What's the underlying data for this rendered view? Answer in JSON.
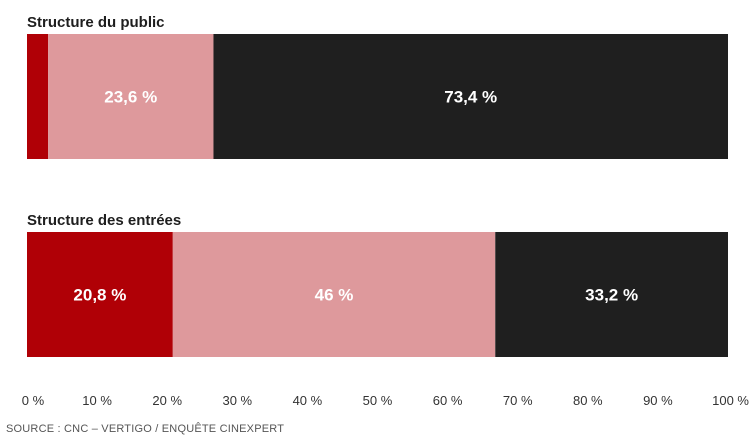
{
  "chart_data": {
    "type": "bar",
    "orientation": "horizontal",
    "stacked": true,
    "normalized_percent": true,
    "xlim": [
      0,
      100
    ],
    "x_ticks": [
      "0 %",
      "10 %",
      "20 %",
      "30 %",
      "40 %",
      "50 %",
      "60 %",
      "70 %",
      "80 %",
      "90 %",
      "100 %"
    ],
    "grid": false,
    "legend": "none",
    "segment_colors": [
      "#b00006",
      "#de999c",
      "#1f1f1f"
    ],
    "bars": [
      {
        "title": "Structure du public",
        "values": [
          3.0,
          23.6,
          73.4
        ],
        "labels": [
          "",
          "23,6 %",
          "73,4 %"
        ]
      },
      {
        "title": "Structure des entrées",
        "values": [
          20.8,
          46,
          33.2
        ],
        "labels": [
          "20,8 %",
          "46 %",
          "33,2 %"
        ]
      }
    ]
  },
  "source": "SOURCE : CNC – VERTIGO / ENQUÊTE CINEXPERT"
}
